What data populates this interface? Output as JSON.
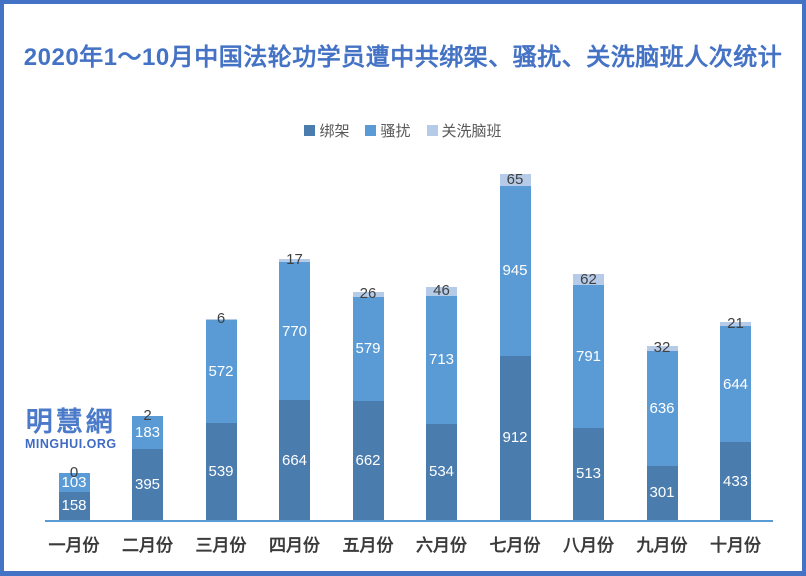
{
  "title": "2020年1～10月中国法轮功学员遭中共绑架、骚扰、关洗脑班人次统计",
  "watermark": {
    "name": "明慧網",
    "domain": "MINGHUI.ORG"
  },
  "colors": {
    "frame_border": "#4472C4",
    "title_text": "#4472C4",
    "axis_line": "#5B9BD5",
    "series_abduction": "#4A7CAE",
    "series_harassment": "#5B9BD5",
    "series_brainwashing": "#B5CBE8",
    "legend_text": "#595959",
    "inside_label_text": "#ffffff",
    "outside_label_text": "#404040"
  },
  "chart_data": {
    "type": "bar",
    "stacked": true,
    "title": "2020年1～10月中国法轮功学员遭中共绑架、骚扰、关洗脑班人次统计",
    "xlabel": "",
    "ylabel": "",
    "value_axis_visible": false,
    "gridlines": false,
    "legend_position": "top-center",
    "categories": [
      "一月份",
      "二月份",
      "三月份",
      "四月份",
      "五月份",
      "六月份",
      "七月份",
      "八月份",
      "九月份",
      "十月份"
    ],
    "series": [
      {
        "name": "绑架",
        "key": "abduction",
        "color": "#4A7CAE",
        "label_position": "center",
        "values": [
          158,
          395,
          539,
          664,
          662,
          534,
          912,
          513,
          301,
          433
        ]
      },
      {
        "name": "骚扰",
        "key": "harassment",
        "color": "#5B9BD5",
        "label_position": "center",
        "values": [
          103,
          183,
          572,
          770,
          579,
          713,
          945,
          791,
          636,
          644
        ]
      },
      {
        "name": "关洗脑班",
        "key": "brainwashing",
        "color": "#B5CBE8",
        "label_position": "above",
        "values": [
          0,
          2,
          6,
          17,
          26,
          46,
          65,
          62,
          32,
          21
        ]
      }
    ],
    "totals": [
      261,
      580,
      1117,
      1451,
      1267,
      1293,
      1922,
      1366,
      969,
      1098
    ]
  }
}
